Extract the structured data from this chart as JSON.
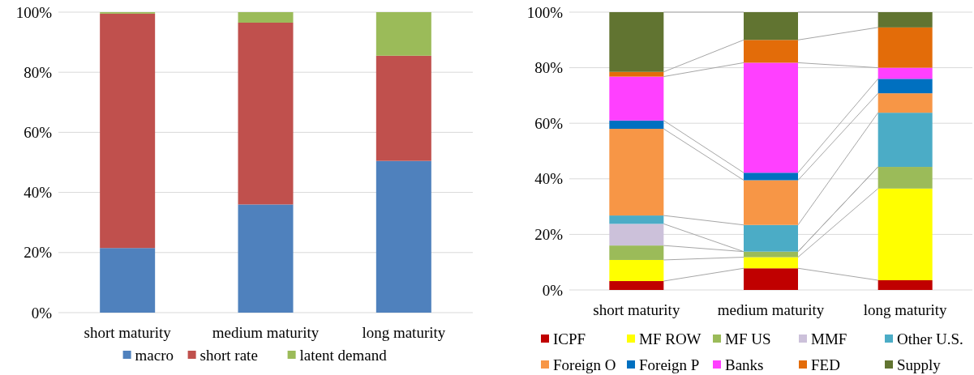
{
  "chart_data": [
    {
      "type": "bar",
      "stacked": true,
      "categories": [
        "short maturity",
        "medium maturity",
        "long maturity"
      ],
      "ylim": [
        0,
        100
      ],
      "yticks": [
        {
          "value": 0,
          "label": "0%"
        },
        {
          "value": 20,
          "label": "20%"
        },
        {
          "value": 40,
          "label": "40%"
        },
        {
          "value": 60,
          "label": "60%"
        },
        {
          "value": 80,
          "label": "80%"
        },
        {
          "value": 100,
          "label": "100%"
        }
      ],
      "grid": "y",
      "legend": "bottom",
      "series": [
        {
          "name": "macro",
          "color": "#4f81bd",
          "values": [
            21.5,
            36,
            50.5
          ]
        },
        {
          "name": "short rate",
          "color": "#c0504d",
          "values": [
            78,
            60.5,
            35
          ]
        },
        {
          "name": "latent demand",
          "color": "#9bbb59",
          "values": [
            0.5,
            3.5,
            14.5
          ]
        }
      ]
    },
    {
      "type": "bar",
      "stacked": true,
      "categories": [
        "short maturity",
        "medium maturity",
        "long maturity"
      ],
      "ylim": [
        0,
        100
      ],
      "yticks": [
        {
          "value": 0,
          "label": "0%"
        },
        {
          "value": 20,
          "label": "20%"
        },
        {
          "value": 40,
          "label": "40%"
        },
        {
          "value": 60,
          "label": "60%"
        },
        {
          "value": 80,
          "label": "80%"
        },
        {
          "value": 100,
          "label": "100%"
        }
      ],
      "grid": "y",
      "legend": "bottom",
      "series": [
        {
          "name": "ICPF",
          "color": "#c00000",
          "values": [
            3.2,
            7.8,
            3.5
          ]
        },
        {
          "name": "MF ROW",
          "color": "#ffff00",
          "values": [
            7.6,
            4.0,
            33.0
          ]
        },
        {
          "name": "MF US",
          "color": "#9bbb59",
          "values": [
            5.2,
            2.0,
            7.8
          ]
        },
        {
          "name": "MMF",
          "color": "#ccc1da",
          "values": [
            7.8,
            0,
            0
          ]
        },
        {
          "name": "Other U.S.",
          "color": "#4bacc6",
          "values": [
            3.0,
            9.6,
            19.5
          ]
        },
        {
          "name": "Foreign O",
          "color": "#f79646",
          "values": [
            31.2,
            16.1,
            7.0
          ]
        },
        {
          "name": "Foreign P",
          "color": "#0070c0",
          "values": [
            3.0,
            2.7,
            5.2
          ]
        },
        {
          "name": "Banks",
          "color": "#ff40ff",
          "values": [
            15.8,
            39.6,
            4.0
          ]
        },
        {
          "name": "FED",
          "color": "#e36c09",
          "values": [
            1.7,
            8.2,
            14.5
          ]
        },
        {
          "name": "Supply",
          "color": "#617431",
          "values": [
            21.5,
            10.0,
            5.5
          ]
        }
      ]
    }
  ]
}
